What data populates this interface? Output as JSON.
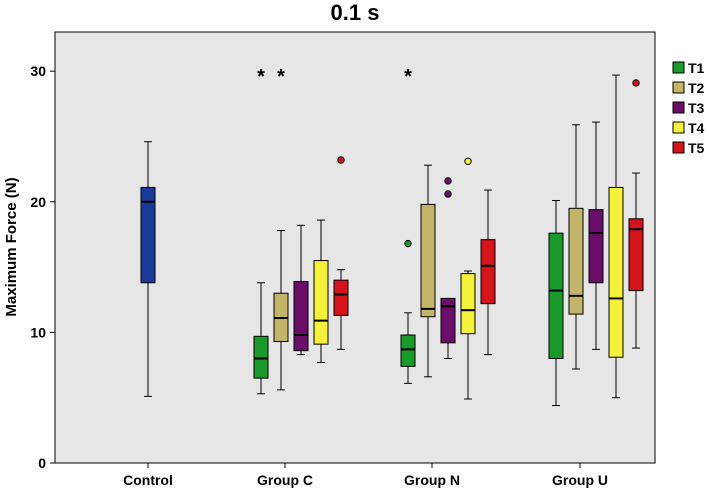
{
  "chart_data": {
    "type": "boxplot",
    "title": "0.1 s",
    "xlabel": "",
    "ylabel": "Maximum Force (N)",
    "ylim": [
      0,
      33
    ],
    "yticks": [
      0,
      10,
      20,
      30
    ],
    "categories": [
      "Control",
      "Group C",
      "Group N",
      "Group U"
    ],
    "legend": {
      "position": "right",
      "entries": [
        {
          "name": "T1",
          "color": "#1a9a2a"
        },
        {
          "name": "T2",
          "color": "#c2b56a"
        },
        {
          "name": "T3",
          "color": "#6a0e6a"
        },
        {
          "name": "T4",
          "color": "#f4f13a"
        },
        {
          "name": "T5",
          "color": "#d4141a"
        }
      ]
    },
    "control": {
      "name": "Control",
      "color": "#1a3a9c",
      "min": 5.1,
      "q1": 13.8,
      "median": 20.0,
      "q3": 21.1,
      "max": 24.6,
      "outliers": []
    },
    "groups": [
      {
        "name": "Group C",
        "significance": [
          "*",
          "*"
        ],
        "boxes": [
          {
            "series": "T1",
            "min": 5.3,
            "q1": 6.5,
            "median": 8.0,
            "q3": 9.7,
            "max": 13.8,
            "outliers": []
          },
          {
            "series": "T2",
            "min": 5.6,
            "q1": 9.3,
            "median": 11.1,
            "q3": 13.0,
            "max": 17.8,
            "outliers": []
          },
          {
            "series": "T3",
            "min": 8.3,
            "q1": 8.6,
            "median": 9.8,
            "q3": 13.9,
            "max": 18.2,
            "outliers": []
          },
          {
            "series": "T4",
            "min": 7.7,
            "q1": 9.1,
            "median": 10.9,
            "q3": 15.5,
            "max": 18.6,
            "outliers": []
          },
          {
            "series": "T5",
            "min": 8.7,
            "q1": 11.3,
            "median": 12.9,
            "q3": 14.0,
            "max": 14.8,
            "outliers": [
              23.2
            ]
          }
        ]
      },
      {
        "name": "Group N",
        "significance": [
          "*"
        ],
        "boxes": [
          {
            "series": "T1",
            "min": 6.1,
            "q1": 7.4,
            "median": 8.7,
            "q3": 9.8,
            "max": 11.5,
            "outliers": [
              16.8
            ]
          },
          {
            "series": "T2",
            "min": 6.6,
            "q1": 11.2,
            "median": 11.8,
            "q3": 19.8,
            "max": 22.8,
            "outliers": []
          },
          {
            "series": "T3",
            "min": 8.0,
            "q1": 9.2,
            "median": 12.0,
            "q3": 12.6,
            "max": 12.6,
            "outliers": [
              20.6,
              21.6
            ]
          },
          {
            "series": "T4",
            "min": 4.9,
            "q1": 9.9,
            "median": 11.7,
            "q3": 14.5,
            "max": 14.7,
            "outliers": [
              23.1
            ]
          },
          {
            "series": "T5",
            "min": 8.3,
            "q1": 12.2,
            "median": 15.1,
            "q3": 17.1,
            "max": 20.9,
            "outliers": []
          }
        ]
      },
      {
        "name": "Group U",
        "significance": [],
        "boxes": [
          {
            "series": "T1",
            "min": 4.4,
            "q1": 8.0,
            "median": 13.2,
            "q3": 17.6,
            "max": 20.1,
            "outliers": []
          },
          {
            "series": "T2",
            "min": 7.2,
            "q1": 11.4,
            "median": 12.8,
            "q3": 19.5,
            "max": 25.9,
            "outliers": []
          },
          {
            "series": "T3",
            "min": 8.7,
            "q1": 13.8,
            "median": 17.6,
            "q3": 19.4,
            "max": 26.1,
            "outliers": []
          },
          {
            "series": "T4",
            "min": 5.0,
            "q1": 8.1,
            "median": 12.6,
            "q3": 21.1,
            "max": 29.7,
            "outliers": []
          },
          {
            "series": "T5",
            "min": 8.8,
            "q1": 13.2,
            "median": 17.9,
            "q3": 18.7,
            "max": 22.2,
            "outliers": [
              29.1
            ]
          }
        ]
      }
    ]
  }
}
